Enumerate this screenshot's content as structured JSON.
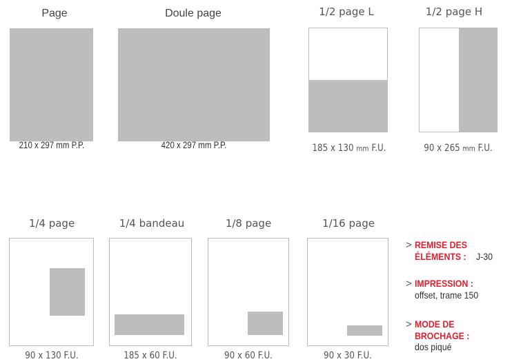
{
  "formats_top": [
    {
      "title": "Page",
      "dim": "210 x 297 mm P.P."
    },
    {
      "title": "Doule page",
      "dim": "420 x 297 mm P.P."
    },
    {
      "title": "1/2 page L",
      "dim_num": "185 x 130",
      "dim_unit": "mm",
      "dim_tail": "F.U."
    },
    {
      "title": "1/2 page H",
      "dim_num": "90 x 265",
      "dim_unit": "mm",
      "dim_tail": "F.U."
    }
  ],
  "formats_bottom": [
    {
      "title": "1/4 page",
      "dim": "90 x 130 F.U."
    },
    {
      "title": "1/4 bandeau",
      "dim": "185 x 60 F.U."
    },
    {
      "title": "1/8 page",
      "dim": "90 x 60 F.U."
    },
    {
      "title": "1/16 page",
      "dim": "90 x 30 F.U."
    }
  ],
  "info": {
    "arrow": ">",
    "remise_label_1": "REMISE DES",
    "remise_label_2": "ÉLÉMENTS :",
    "remise_value": "J-30",
    "impression_label": "IMPRESSION :",
    "impression_value": "offset, trame 150",
    "brochage_label_1": "MODE DE",
    "brochage_label_2": "BROCHAGE :",
    "brochage_value": "dos piqué"
  },
  "colors": {
    "fill": "#bdbdbf",
    "accent": "#e31e2d",
    "border": "#bdbdbf"
  }
}
